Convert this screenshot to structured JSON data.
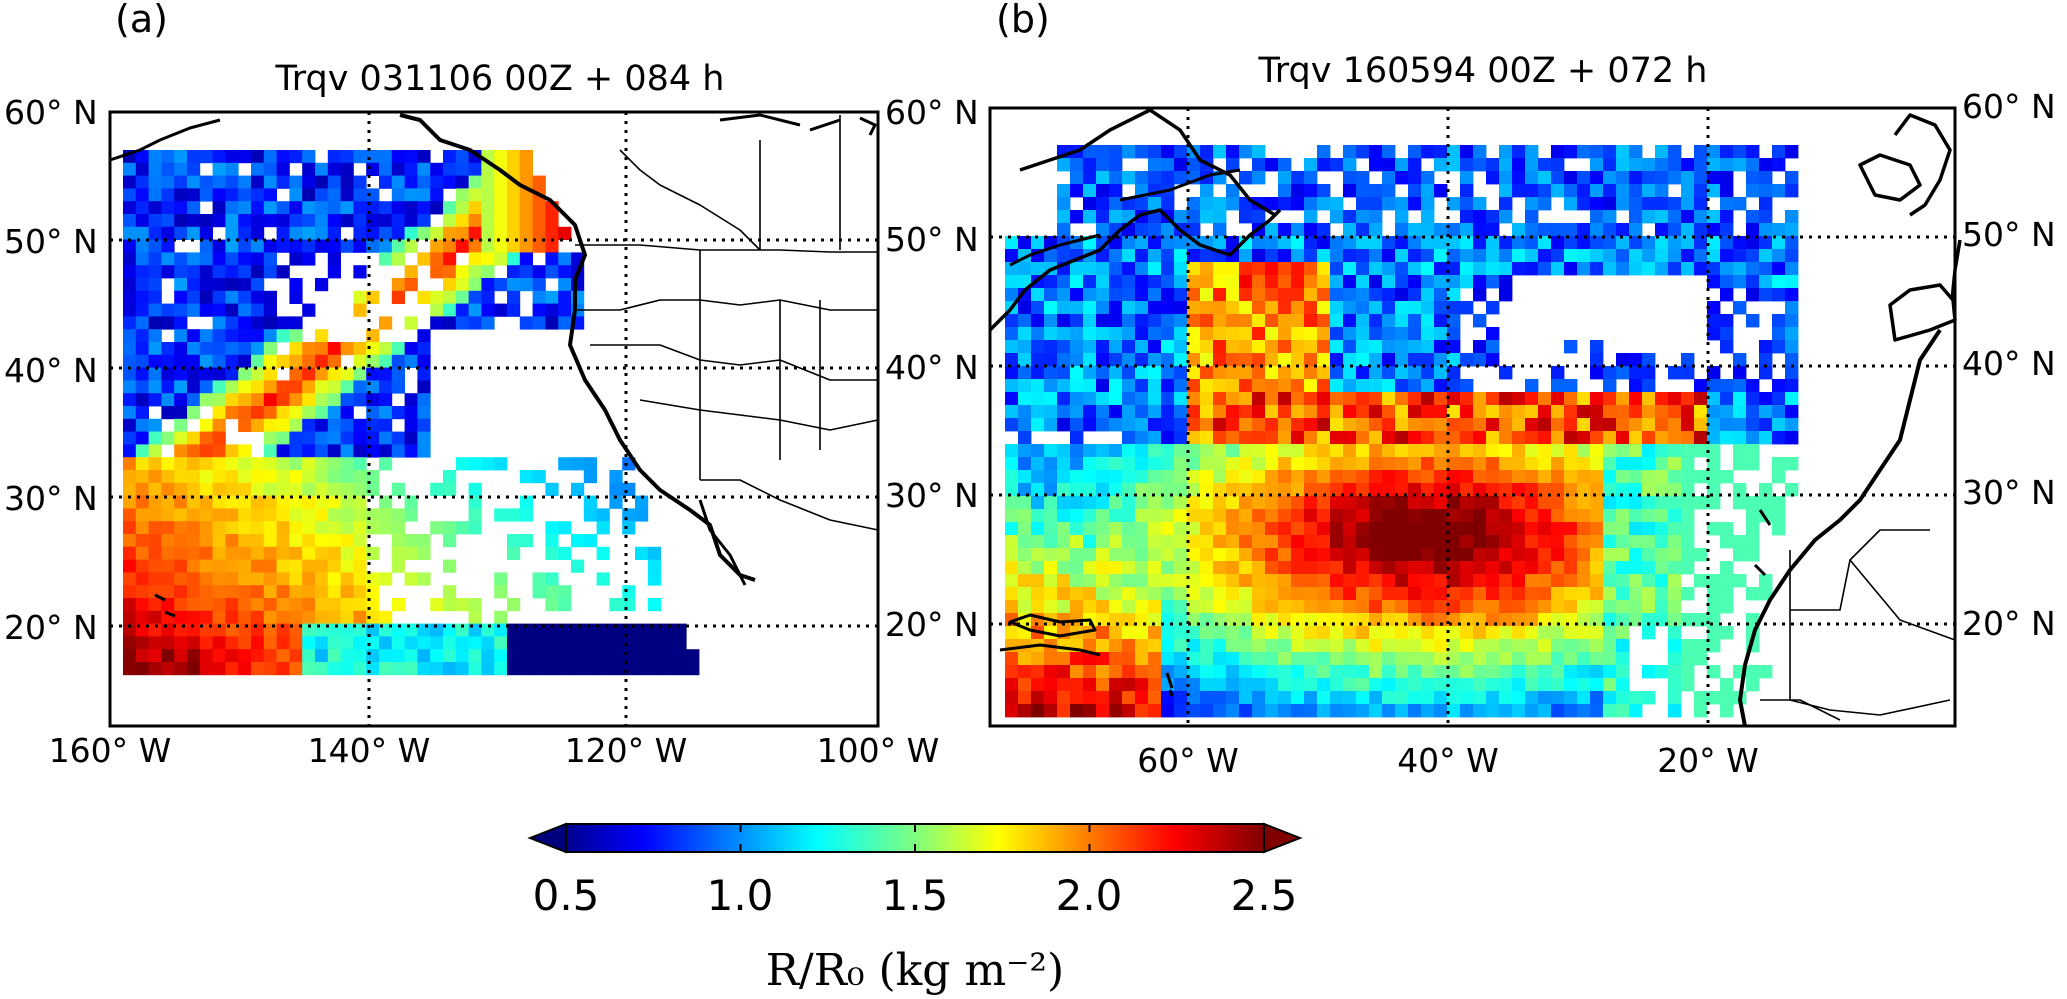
{
  "panels": [
    {
      "id": "a",
      "letter": "(a)",
      "title": "Trqv 031106 00Z + 084 h",
      "lat_labels": [
        "60° N",
        "50° N",
        "40° N",
        "30° N",
        "20° N"
      ],
      "lon_labels": [
        "160° W",
        "140° W",
        "120° W",
        "100° W"
      ]
    },
    {
      "id": "b",
      "letter": "(b)",
      "title": "Trqv 160594 00Z + 072 h",
      "lat_labels": [
        "60° N",
        "50° N",
        "40° N",
        "30° N",
        "20° N"
      ],
      "lon_labels": [
        "60° W",
        "40° W",
        "20° W"
      ]
    }
  ],
  "colorbar": {
    "ticks": [
      "0.5",
      "1.0",
      "1.5",
      "2.0",
      "2.5"
    ],
    "tick_values": [
      0.5,
      1.0,
      1.5,
      2.0,
      2.5
    ],
    "range": [
      0.5,
      2.5
    ],
    "colormap": "jet",
    "extend": "both",
    "label": "R/R₀ (kg m⁻²)"
  },
  "colors": {
    "coast": "#000000",
    "grid": "#000000",
    "background": "#ffffff"
  }
}
